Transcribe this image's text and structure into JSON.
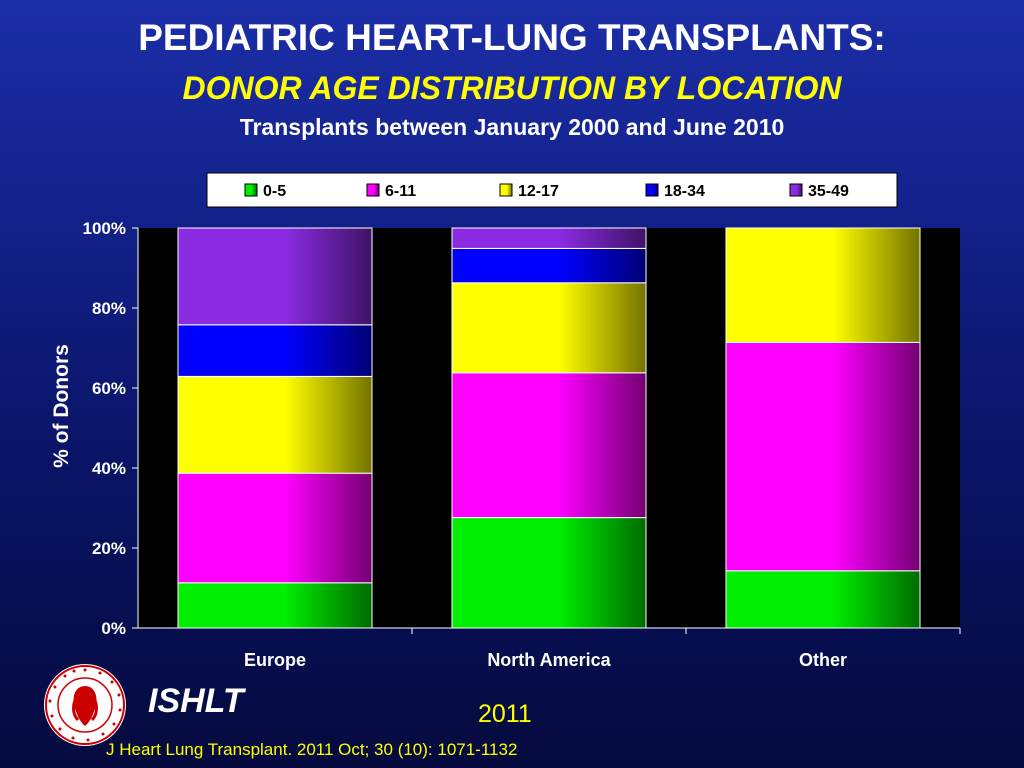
{
  "header": {
    "title": "PEDIATRIC HEART-LUNG TRANSPLANTS:",
    "subtitle": "DONOR AGE DISTRIBUTION BY LOCATION",
    "subsubtitle": "Transplants between January 2000 and June 2010"
  },
  "footer": {
    "org": "ISHLT",
    "year": "2011",
    "citation": "J Heart Lung Transplant. 2011 Oct; 30 (10): 1071-1132",
    "logo_text": "INTERNATIONAL SOCIETY FOR HEART & LUNG TRANSPLANTATION"
  },
  "colors": {
    "0-5": "#00ee00",
    "6-11": "#ff00ff",
    "12-17": "#ffff00",
    "18-34": "#0000ff",
    "35-49": "#8a2be2"
  },
  "chart_data": {
    "type": "bar",
    "stacked": true,
    "title": "",
    "xlabel": "",
    "ylabel": "% of Donors",
    "ylim": [
      0,
      100
    ],
    "yticks": [
      "0%",
      "20%",
      "40%",
      "60%",
      "80%",
      "100%"
    ],
    "categories": [
      "Europe",
      "North America",
      "Other"
    ],
    "legend_position": "top",
    "grid": false,
    "series": [
      {
        "name": "0-5",
        "values": [
          11.3,
          27.6,
          14.3
        ]
      },
      {
        "name": "6-11",
        "values": [
          27.4,
          36.2,
          57.1
        ]
      },
      {
        "name": "12-17",
        "values": [
          24.2,
          22.5,
          28.6
        ]
      },
      {
        "name": "18-34",
        "values": [
          12.9,
          8.6,
          0
        ]
      },
      {
        "name": "35-49",
        "values": [
          24.2,
          5.1,
          0
        ]
      }
    ]
  }
}
